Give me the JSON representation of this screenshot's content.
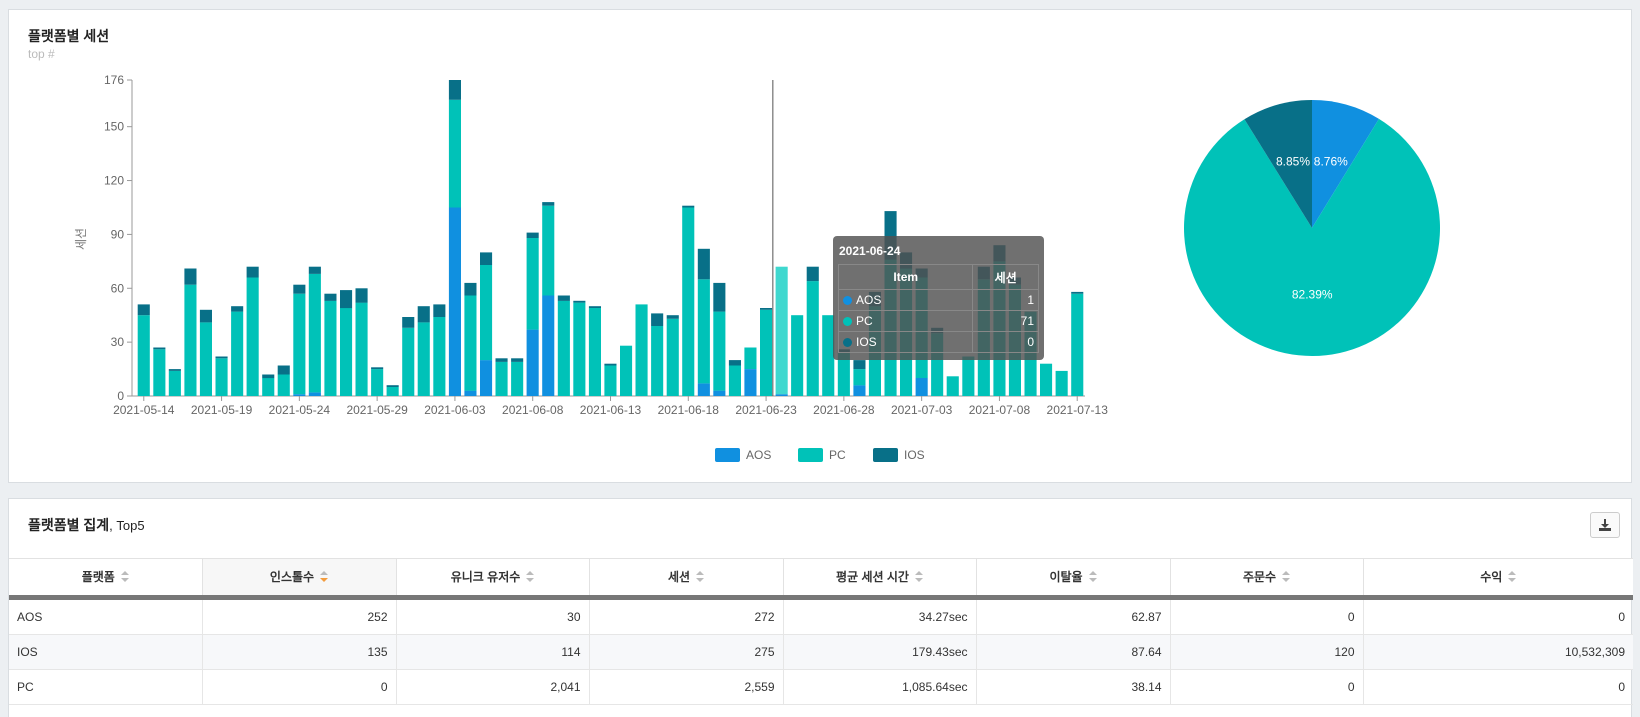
{
  "top_panel": {
    "title": "플랫폼별 세션",
    "subtitle": "top #"
  },
  "chart_data": [
    {
      "type": "bar",
      "stacked": true,
      "ylabel": "세션",
      "ylim": [
        0,
        176
      ],
      "yticks": [
        0,
        30,
        60,
        90,
        120,
        150,
        176
      ],
      "x_tick_labels": [
        "2021-05-14",
        "2021-05-19",
        "2021-05-24",
        "2021-05-29",
        "2021-06-03",
        "2021-06-08",
        "2021-06-13",
        "2021-06-18",
        "2021-06-23",
        "2021-06-28",
        "2021-07-03",
        "2021-07-08",
        "2021-07-13"
      ],
      "categories": [
        "2021-05-14",
        "2021-05-15",
        "2021-05-16",
        "2021-05-17",
        "2021-05-18",
        "2021-05-19",
        "2021-05-20",
        "2021-05-21",
        "2021-05-22",
        "2021-05-23",
        "2021-05-24",
        "2021-05-25",
        "2021-05-26",
        "2021-05-27",
        "2021-05-28",
        "2021-05-29",
        "2021-05-30",
        "2021-05-31",
        "2021-06-01",
        "2021-06-02",
        "2021-06-03",
        "2021-06-04",
        "2021-06-05",
        "2021-06-06",
        "2021-06-07",
        "2021-06-08",
        "2021-06-09",
        "2021-06-10",
        "2021-06-11",
        "2021-06-12",
        "2021-06-13",
        "2021-06-14",
        "2021-06-15",
        "2021-06-16",
        "2021-06-17",
        "2021-06-18",
        "2021-06-19",
        "2021-06-20",
        "2021-06-21",
        "2021-06-22",
        "2021-06-23",
        "2021-06-24",
        "2021-06-25",
        "2021-06-26",
        "2021-06-27",
        "2021-06-28",
        "2021-06-29",
        "2021-06-30",
        "2021-07-01",
        "2021-07-02",
        "2021-07-03",
        "2021-07-04",
        "2021-07-05",
        "2021-07-06",
        "2021-07-07",
        "2021-07-08",
        "2021-07-09",
        "2021-07-10",
        "2021-07-11",
        "2021-07-12",
        "2021-07-13"
      ],
      "series": [
        {
          "name": "AOS",
          "color": "#1090e0",
          "values": [
            0,
            0,
            0,
            0,
            0,
            0,
            0,
            0,
            0,
            0,
            1,
            2,
            0,
            0,
            0,
            0,
            0,
            0,
            0,
            0,
            105,
            3,
            20,
            0,
            0,
            37,
            56,
            0,
            0,
            0,
            0,
            0,
            0,
            0,
            0,
            0,
            7,
            3,
            0,
            15,
            0,
            1,
            0,
            0,
            0,
            0,
            6,
            0,
            0,
            0,
            10,
            0,
            0,
            0,
            0,
            0,
            0,
            0,
            0,
            0,
            0
          ]
        },
        {
          "name": "PC",
          "color": "#00c2b8",
          "values": [
            45,
            26,
            14,
            62,
            41,
            21,
            47,
            66,
            10,
            12,
            56,
            66,
            53,
            49,
            52,
            15,
            5,
            38,
            41,
            44,
            60,
            53,
            53,
            19,
            19,
            51,
            50,
            53,
            52,
            49,
            17,
            28,
            51,
            39,
            43,
            105,
            58,
            44,
            17,
            12,
            48,
            71,
            45,
            64,
            45,
            24,
            9,
            50,
            76,
            71,
            56,
            35,
            11,
            22,
            65,
            75,
            62,
            47,
            18,
            14,
            57
          ]
        },
        {
          "name": "IOS",
          "color": "#087088",
          "values": [
            6,
            1,
            1,
            9,
            7,
            1,
            3,
            6,
            2,
            5,
            5,
            4,
            4,
            10,
            8,
            1,
            1,
            6,
            9,
            7,
            11,
            7,
            7,
            2,
            2,
            3,
            2,
            3,
            1,
            1,
            1,
            0,
            0,
            7,
            2,
            1,
            17,
            16,
            3,
            0,
            1,
            0,
            0,
            8,
            0,
            2,
            5,
            8,
            27,
            9,
            5,
            3,
            0,
            0,
            7,
            9,
            4,
            0,
            0,
            0,
            1
          ]
        }
      ]
    },
    {
      "type": "pie",
      "slices": [
        {
          "name": "AOS",
          "value": 8.76,
          "label": "8.76%",
          "color": "#1090e0"
        },
        {
          "name": "PC",
          "value": 82.39,
          "label": "82.39%",
          "color": "#00c2b8"
        },
        {
          "name": "IOS",
          "value": 8.85,
          "label": "8.85%",
          "color": "#087088"
        }
      ]
    }
  ],
  "legend": [
    {
      "name": "AOS",
      "color": "#1090e0"
    },
    {
      "name": "PC",
      "color": "#00c2b8"
    },
    {
      "name": "IOS",
      "color": "#087088"
    }
  ],
  "tooltip": {
    "date": "2021-06-24",
    "col_item": "Item",
    "col_session": "세션",
    "rows": [
      {
        "name": "AOS",
        "value": "1",
        "color": "#1090e0"
      },
      {
        "name": "PC",
        "value": "71",
        "color": "#00c2b8"
      },
      {
        "name": "IOS",
        "value": "0",
        "color": "#087088"
      }
    ]
  },
  "bottom_panel": {
    "title": "플랫폼별 집계",
    "title_suffix": ", Top5",
    "download_icon": "download-icon"
  },
  "table": {
    "headers": [
      "플랫폼",
      "인스톨수",
      "유니크 유저수",
      "세션",
      "평균 세션 시간",
      "이탈율",
      "주문수",
      "수익"
    ],
    "sorted_column": 1,
    "rows": [
      [
        "AOS",
        "252",
        "30",
        "272",
        "34.27sec",
        "62.87",
        "0",
        "0"
      ],
      [
        "IOS",
        "135",
        "114",
        "275",
        "179.43sec",
        "87.64",
        "120",
        "10,532,309"
      ],
      [
        "PC",
        "0",
        "2,041",
        "2,559",
        "1,085.64sec",
        "38.14",
        "0",
        "0"
      ]
    ]
  }
}
